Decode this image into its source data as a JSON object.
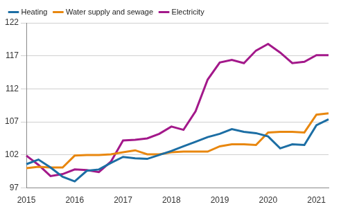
{
  "chart_data": {
    "type": "line",
    "categories": [
      "2015",
      null,
      null,
      null,
      "2016",
      null,
      null,
      null,
      "2017",
      null,
      null,
      null,
      "2018",
      null,
      null,
      null,
      "2019",
      null,
      null,
      null,
      "2020",
      null,
      null,
      null,
      "2021",
      null
    ],
    "series": [
      {
        "name": "Heating",
        "color": "#1c6ea4",
        "values": [
          100.6,
          101.3,
          100.1,
          98.7,
          98.0,
          99.6,
          99.8,
          100.8,
          101.7,
          101.5,
          101.4,
          102.0,
          102.6,
          103.3,
          104.0,
          104.7,
          105.2,
          105.9,
          105.5,
          105.3,
          104.8,
          103.0,
          103.6,
          103.5,
          106.5,
          107.4
        ]
      },
      {
        "name": "Water supply and sewage",
        "color": "#e8870f",
        "values": [
          100.0,
          100.2,
          100.1,
          100.1,
          101.9,
          102.0,
          102.0,
          102.1,
          102.4,
          102.7,
          102.1,
          102.1,
          102.4,
          102.5,
          102.5,
          102.5,
          103.3,
          103.6,
          103.6,
          103.5,
          105.4,
          105.5,
          105.5,
          105.4,
          108.1,
          108.3
        ]
      },
      {
        "name": "Electricity",
        "color": "#a3188a",
        "values": [
          101.9,
          100.5,
          98.8,
          99.1,
          99.8,
          99.7,
          99.4,
          101.0,
          104.2,
          104.3,
          104.5,
          105.2,
          106.3,
          105.8,
          108.6,
          113.4,
          116.0,
          116.4,
          115.9,
          117.8,
          118.8,
          117.5,
          115.9,
          116.1,
          117.1,
          117.1
        ]
      }
    ],
    "ylim": [
      97,
      122
    ],
    "yticks": [
      97,
      102,
      107,
      112,
      117,
      122
    ],
    "grid": true,
    "legend": "upper left"
  }
}
